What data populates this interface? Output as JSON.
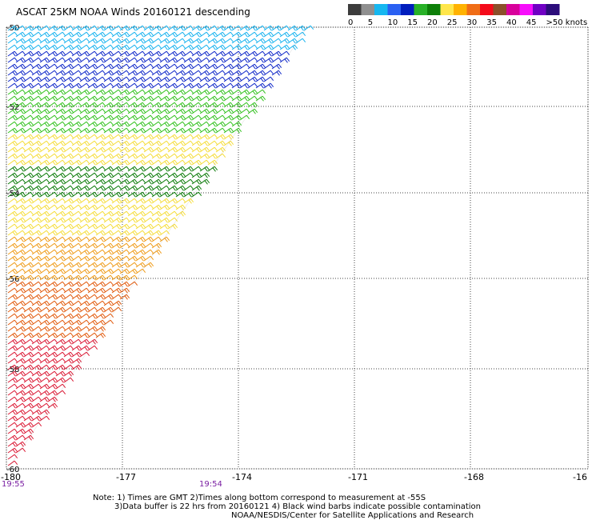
{
  "title": "ASCAT 25KM NOAA Winds 20160121 descending",
  "legend": {
    "unit": "knots",
    "bins": [
      {
        "label": "0",
        "color": "#3c3c3c"
      },
      {
        "label": "5",
        "color": "#8f8f8f"
      },
      {
        "label": "10",
        "color": "#16b7f0"
      },
      {
        "label": "15",
        "color": "#2a60f2"
      },
      {
        "label": "20",
        "color": "#001dbd"
      },
      {
        "label": "25",
        "color": "#27b127"
      },
      {
        "label": "30",
        "color": "#0d7f08"
      },
      {
        "label": "35",
        "color": "#ffe64a"
      },
      {
        "label": "40",
        "color": "#ffb200"
      },
      {
        "label": "45",
        "color": "#f06d16"
      },
      {
        "label": ">50 knots",
        "color": "#d4133f"
      }
    ],
    "extra_colors": [
      "#f40b1a",
      "#8b4f2a",
      "#d8009b",
      "#f70efb",
      "#7000c4",
      "#2c0d7b"
    ]
  },
  "map": {
    "lat_labels": [
      "-50",
      "-52",
      "-54",
      "-56",
      "-58",
      "-60"
    ],
    "lon_labels": [
      "-180",
      "-177",
      "-174",
      "-171",
      "-168",
      "-16"
    ],
    "gridlines": true
  },
  "times": [
    {
      "label": "19:55"
    },
    {
      "label": "19:54"
    }
  ],
  "notes": {
    "line1": "Note: 1) Times are GMT 2)Times along bottom correspond to measurement at -55S",
    "line2": "3)Data buffer is 22 hrs from 20160121 4) Black wind barbs indicate possible contamination",
    "line3": "NOAA/NESDIS/Center for Satellite Applications and Research"
  },
  "wind_colors": {
    "cyan": "#18b3ef",
    "blue": "#1129c9",
    "green": "#33c21f",
    "darkgreen": "#0b7b08",
    "yellow": "#f5dd3b",
    "orange": "#ef9c1a",
    "orangered": "#e25b0e",
    "red": "#db1a35"
  }
}
